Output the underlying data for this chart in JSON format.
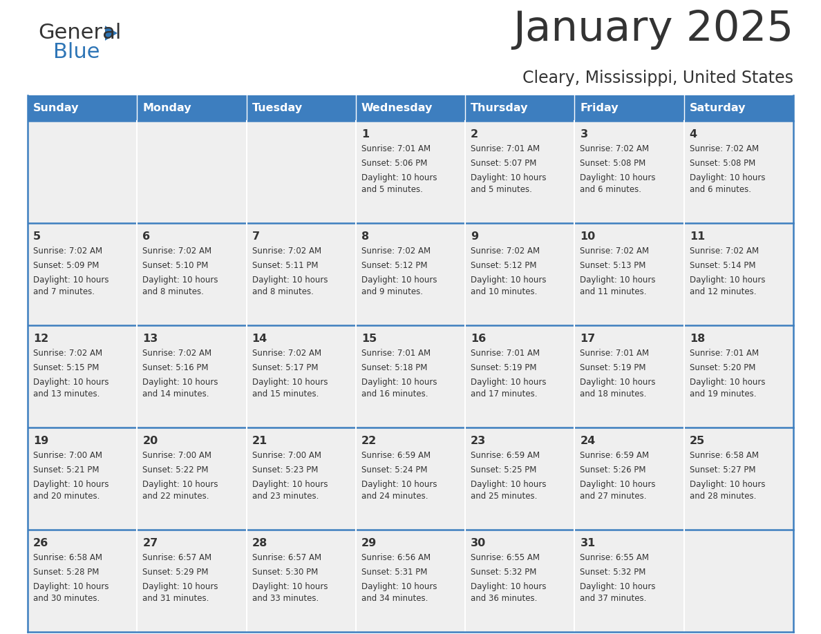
{
  "title": "January 2025",
  "subtitle": "Cleary, Mississippi, United States",
  "header_bg": "#3d7ebf",
  "header_text_color": "#ffffff",
  "cell_bg_light": "#efefef",
  "cell_bg_white": "#ffffff",
  "text_color": "#333333",
  "border_color": "#3d7ebf",
  "logo_general_color": "#333333",
  "logo_blue_color": "#2e75b6",
  "logo_triangle_color": "#2e75b6",
  "days_of_week": [
    "Sunday",
    "Monday",
    "Tuesday",
    "Wednesday",
    "Thursday",
    "Friday",
    "Saturday"
  ],
  "weeks": [
    [
      {
        "day": "",
        "sunrise": "",
        "sunset": "",
        "daylight": ""
      },
      {
        "day": "",
        "sunrise": "",
        "sunset": "",
        "daylight": ""
      },
      {
        "day": "",
        "sunrise": "",
        "sunset": "",
        "daylight": ""
      },
      {
        "day": "1",
        "sunrise": "Sunrise: 7:01 AM",
        "sunset": "Sunset: 5:06 PM",
        "daylight": "Daylight: 10 hours\nand 5 minutes."
      },
      {
        "day": "2",
        "sunrise": "Sunrise: 7:01 AM",
        "sunset": "Sunset: 5:07 PM",
        "daylight": "Daylight: 10 hours\nand 5 minutes."
      },
      {
        "day": "3",
        "sunrise": "Sunrise: 7:02 AM",
        "sunset": "Sunset: 5:08 PM",
        "daylight": "Daylight: 10 hours\nand 6 minutes."
      },
      {
        "day": "4",
        "sunrise": "Sunrise: 7:02 AM",
        "sunset": "Sunset: 5:08 PM",
        "daylight": "Daylight: 10 hours\nand 6 minutes."
      }
    ],
    [
      {
        "day": "5",
        "sunrise": "Sunrise: 7:02 AM",
        "sunset": "Sunset: 5:09 PM",
        "daylight": "Daylight: 10 hours\nand 7 minutes."
      },
      {
        "day": "6",
        "sunrise": "Sunrise: 7:02 AM",
        "sunset": "Sunset: 5:10 PM",
        "daylight": "Daylight: 10 hours\nand 8 minutes."
      },
      {
        "day": "7",
        "sunrise": "Sunrise: 7:02 AM",
        "sunset": "Sunset: 5:11 PM",
        "daylight": "Daylight: 10 hours\nand 8 minutes."
      },
      {
        "day": "8",
        "sunrise": "Sunrise: 7:02 AM",
        "sunset": "Sunset: 5:12 PM",
        "daylight": "Daylight: 10 hours\nand 9 minutes."
      },
      {
        "day": "9",
        "sunrise": "Sunrise: 7:02 AM",
        "sunset": "Sunset: 5:12 PM",
        "daylight": "Daylight: 10 hours\nand 10 minutes."
      },
      {
        "day": "10",
        "sunrise": "Sunrise: 7:02 AM",
        "sunset": "Sunset: 5:13 PM",
        "daylight": "Daylight: 10 hours\nand 11 minutes."
      },
      {
        "day": "11",
        "sunrise": "Sunrise: 7:02 AM",
        "sunset": "Sunset: 5:14 PM",
        "daylight": "Daylight: 10 hours\nand 12 minutes."
      }
    ],
    [
      {
        "day": "12",
        "sunrise": "Sunrise: 7:02 AM",
        "sunset": "Sunset: 5:15 PM",
        "daylight": "Daylight: 10 hours\nand 13 minutes."
      },
      {
        "day": "13",
        "sunrise": "Sunrise: 7:02 AM",
        "sunset": "Sunset: 5:16 PM",
        "daylight": "Daylight: 10 hours\nand 14 minutes."
      },
      {
        "day": "14",
        "sunrise": "Sunrise: 7:02 AM",
        "sunset": "Sunset: 5:17 PM",
        "daylight": "Daylight: 10 hours\nand 15 minutes."
      },
      {
        "day": "15",
        "sunrise": "Sunrise: 7:01 AM",
        "sunset": "Sunset: 5:18 PM",
        "daylight": "Daylight: 10 hours\nand 16 minutes."
      },
      {
        "day": "16",
        "sunrise": "Sunrise: 7:01 AM",
        "sunset": "Sunset: 5:19 PM",
        "daylight": "Daylight: 10 hours\nand 17 minutes."
      },
      {
        "day": "17",
        "sunrise": "Sunrise: 7:01 AM",
        "sunset": "Sunset: 5:19 PM",
        "daylight": "Daylight: 10 hours\nand 18 minutes."
      },
      {
        "day": "18",
        "sunrise": "Sunrise: 7:01 AM",
        "sunset": "Sunset: 5:20 PM",
        "daylight": "Daylight: 10 hours\nand 19 minutes."
      }
    ],
    [
      {
        "day": "19",
        "sunrise": "Sunrise: 7:00 AM",
        "sunset": "Sunset: 5:21 PM",
        "daylight": "Daylight: 10 hours\nand 20 minutes."
      },
      {
        "day": "20",
        "sunrise": "Sunrise: 7:00 AM",
        "sunset": "Sunset: 5:22 PM",
        "daylight": "Daylight: 10 hours\nand 22 minutes."
      },
      {
        "day": "21",
        "sunrise": "Sunrise: 7:00 AM",
        "sunset": "Sunset: 5:23 PM",
        "daylight": "Daylight: 10 hours\nand 23 minutes."
      },
      {
        "day": "22",
        "sunrise": "Sunrise: 6:59 AM",
        "sunset": "Sunset: 5:24 PM",
        "daylight": "Daylight: 10 hours\nand 24 minutes."
      },
      {
        "day": "23",
        "sunrise": "Sunrise: 6:59 AM",
        "sunset": "Sunset: 5:25 PM",
        "daylight": "Daylight: 10 hours\nand 25 minutes."
      },
      {
        "day": "24",
        "sunrise": "Sunrise: 6:59 AM",
        "sunset": "Sunset: 5:26 PM",
        "daylight": "Daylight: 10 hours\nand 27 minutes."
      },
      {
        "day": "25",
        "sunrise": "Sunrise: 6:58 AM",
        "sunset": "Sunset: 5:27 PM",
        "daylight": "Daylight: 10 hours\nand 28 minutes."
      }
    ],
    [
      {
        "day": "26",
        "sunrise": "Sunrise: 6:58 AM",
        "sunset": "Sunset: 5:28 PM",
        "daylight": "Daylight: 10 hours\nand 30 minutes."
      },
      {
        "day": "27",
        "sunrise": "Sunrise: 6:57 AM",
        "sunset": "Sunset: 5:29 PM",
        "daylight": "Daylight: 10 hours\nand 31 minutes."
      },
      {
        "day": "28",
        "sunrise": "Sunrise: 6:57 AM",
        "sunset": "Sunset: 5:30 PM",
        "daylight": "Daylight: 10 hours\nand 33 minutes."
      },
      {
        "day": "29",
        "sunrise": "Sunrise: 6:56 AM",
        "sunset": "Sunset: 5:31 PM",
        "daylight": "Daylight: 10 hours\nand 34 minutes."
      },
      {
        "day": "30",
        "sunrise": "Sunrise: 6:55 AM",
        "sunset": "Sunset: 5:32 PM",
        "daylight": "Daylight: 10 hours\nand 36 minutes."
      },
      {
        "day": "31",
        "sunrise": "Sunrise: 6:55 AM",
        "sunset": "Sunset: 5:32 PM",
        "daylight": "Daylight: 10 hours\nand 37 minutes."
      },
      {
        "day": "",
        "sunrise": "",
        "sunset": "",
        "daylight": ""
      }
    ]
  ]
}
